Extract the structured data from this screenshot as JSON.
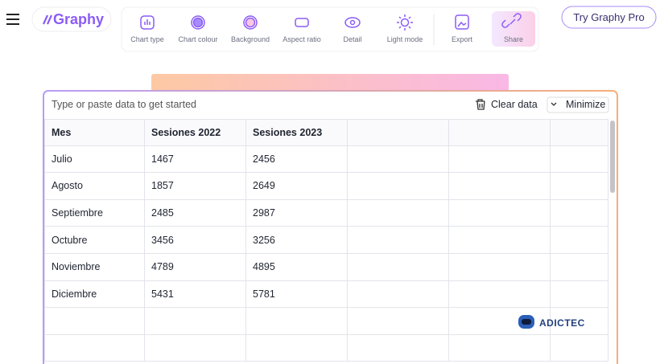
{
  "header": {
    "logo": "Graphy",
    "toolbar": [
      "Chart type",
      "Chart colour",
      "Background",
      "Aspect ratio",
      "Detail",
      "Light mode",
      "Export",
      "Share"
    ],
    "pro_button": "Try Graphy Pro"
  },
  "panel": {
    "prompt": "Type or paste data to get started",
    "clear": "Clear data",
    "minimize": "Minimize"
  },
  "table": {
    "header": [
      "Mes",
      "Sesiones 2022",
      "Sesiones 2023"
    ],
    "rows": [
      [
        "Julio",
        1467,
        2456
      ],
      [
        "Agosto",
        1857,
        2649
      ],
      [
        "Septiembre",
        2485,
        2987
      ],
      [
        "Octubre",
        3456,
        3256
      ],
      [
        "Noviembre",
        4789,
        4895
      ],
      [
        "Diciembre",
        5431,
        5781
      ]
    ]
  },
  "watermark": "ADICTEC"
}
